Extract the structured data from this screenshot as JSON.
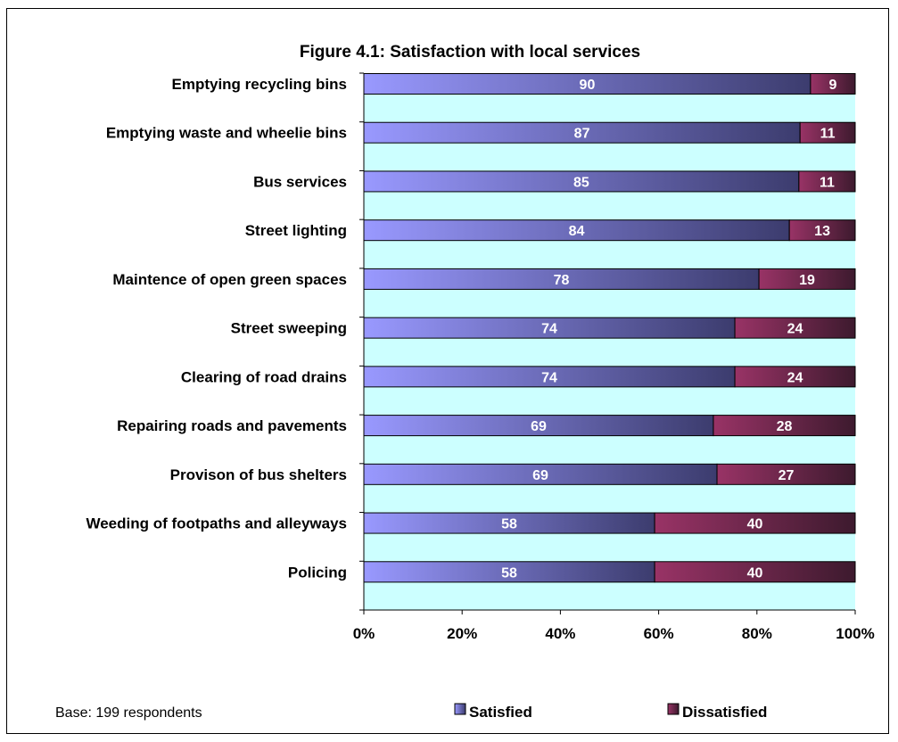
{
  "chart_data": {
    "type": "bar",
    "orientation": "horizontal",
    "stacked": true,
    "title": "Figure 4.1: Satisfaction with local services",
    "categories": [
      "Emptying recycling bins",
      "Emptying waste and wheelie bins",
      "Bus services",
      "Street lighting",
      "Maintence of open green spaces",
      "Street sweeping",
      "Clearing of road drains",
      "Repairing roads and pavements",
      "Provison of bus shelters",
      "Weeding of footpaths and alleyways",
      "Policing"
    ],
    "series": [
      {
        "name": "Satisfied",
        "values": [
          90,
          87,
          85,
          84,
          78,
          74,
          74,
          69,
          69,
          58,
          58
        ]
      },
      {
        "name": "Dissatisfied",
        "values": [
          9,
          11,
          11,
          13,
          19,
          24,
          24,
          28,
          27,
          40,
          40
        ]
      }
    ],
    "xlim": [
      0,
      100
    ],
    "x_ticks": [
      "0%",
      "20%",
      "40%",
      "60%",
      "80%",
      "100%"
    ],
    "legend_position": "bottom",
    "plot_background": "#ccffff",
    "colors": {
      "satisfied_light": "#9999ff",
      "satisfied_dark": "#3c3c6e",
      "dissatisfied_light": "#993366",
      "dissatisfied_dark": "#3d1a2e"
    },
    "footnote": "Base: 199 respondents"
  }
}
